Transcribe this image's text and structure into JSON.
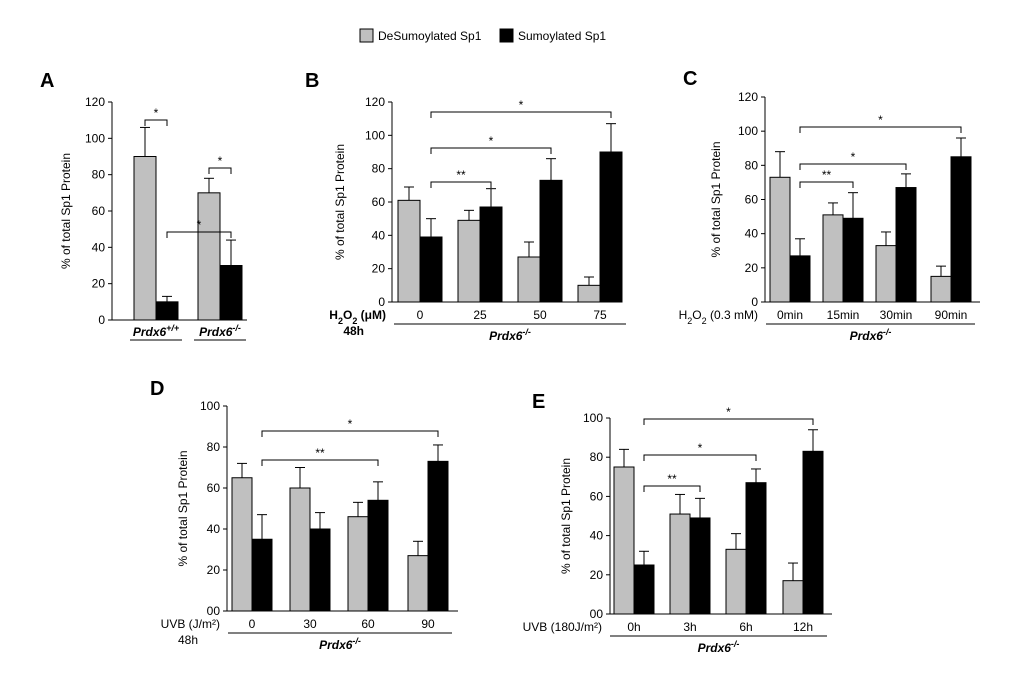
{
  "colors": {
    "desumoylated": "#c0c0c0",
    "sumoylated": "#000000",
    "axis": "#000000"
  },
  "legend": [
    {
      "name": "DeSumoylated Sp1",
      "color": "#c0c0c0"
    },
    {
      "name": "Sumoylated Sp1",
      "color": "#000000"
    }
  ],
  "chart_data": [
    {
      "id": "A",
      "type": "bar",
      "panel_label": "A",
      "ylabel": "% of total Sp1 Protein",
      "ylim": [
        0,
        120
      ],
      "yticks": [
        "0",
        "20",
        "40",
        "60",
        "80",
        "100",
        "120"
      ],
      "groups": [
        {
          "label_main": "Prdx6",
          "label_sup": "+/+",
          "values": [
            90,
            10
          ],
          "errors": [
            16,
            3
          ]
        },
        {
          "label_main": "Prdx6",
          "label_sup": "-/-",
          "values": [
            70,
            30
          ],
          "errors": [
            8,
            14
          ]
        }
      ],
      "annotations": [
        {
          "text": "*"
        },
        {
          "text": "*"
        },
        {
          "text": "*"
        }
      ]
    },
    {
      "id": "B",
      "type": "bar",
      "panel_label": "B",
      "ylabel": "% of total Sp1 Protein",
      "ylim": [
        0,
        120
      ],
      "yticks": [
        "0",
        "20",
        "40",
        "60",
        "80",
        "100",
        "120"
      ],
      "xprefix_main": "H",
      "xprefix_sub": "2",
      "xprefix_mid": "O",
      "xprefix_sub2": "2",
      "xprefix_unit": " (μM)",
      "xprefix_line2": "48h",
      "groups": [
        {
          "label": "0",
          "values": [
            61,
            39
          ],
          "errors": [
            8,
            11
          ]
        },
        {
          "label": "25",
          "values": [
            49,
            57
          ],
          "errors": [
            6,
            11
          ]
        },
        {
          "label": "50",
          "values": [
            27,
            73
          ],
          "errors": [
            9,
            13
          ]
        },
        {
          "label": "75",
          "values": [
            10,
            90
          ],
          "errors": [
            5,
            17
          ]
        }
      ],
      "group_label": "Prdx6-/-",
      "annotations": [
        {
          "text": "**"
        },
        {
          "text": "*"
        },
        {
          "text": "*"
        }
      ]
    },
    {
      "id": "C",
      "type": "bar",
      "panel_label": "C",
      "ylabel": "% of total Sp1 Protein",
      "ylim": [
        0,
        120
      ],
      "yticks": [
        "0",
        "20",
        "40",
        "60",
        "80",
        "100",
        "120"
      ],
      "xprefix_main": "H",
      "xprefix_sub": "2",
      "xprefix_mid": "O",
      "xprefix_sub2": "2",
      "xprefix_unit": " (0.3 mM)",
      "groups": [
        {
          "label": "0min",
          "values": [
            73,
            27
          ],
          "errors": [
            15,
            10
          ]
        },
        {
          "label": "15min",
          "values": [
            51,
            49
          ],
          "errors": [
            7,
            15
          ]
        },
        {
          "label": "30min",
          "values": [
            33,
            67
          ],
          "errors": [
            8,
            8
          ]
        },
        {
          "label": "90min",
          "values": [
            15,
            85
          ],
          "errors": [
            6,
            11
          ]
        }
      ],
      "group_label": "Prdx6-/-",
      "annotations": [
        {
          "text": "**"
        },
        {
          "text": "*"
        },
        {
          "text": "*"
        }
      ]
    },
    {
      "id": "D",
      "type": "bar",
      "panel_label": "D",
      "ylabel": "% of total Sp1 Protein",
      "ylim": [
        0,
        100
      ],
      "yticks": [
        "00",
        "20",
        "40",
        "60",
        "80",
        "100"
      ],
      "xprefix_text": "UVB (J/m²)",
      "xprefix_line2": "48h",
      "groups": [
        {
          "label": "0",
          "values": [
            65,
            35
          ],
          "errors": [
            7,
            12
          ]
        },
        {
          "label": "30",
          "values": [
            60,
            40
          ],
          "errors": [
            10,
            8
          ]
        },
        {
          "label": "60",
          "values": [
            46,
            54
          ],
          "errors": [
            7,
            9
          ]
        },
        {
          "label": "90",
          "values": [
            27,
            73
          ],
          "errors": [
            7,
            8
          ]
        }
      ],
      "group_label": "Prdx6-/-",
      "annotations": [
        {
          "text": "**"
        },
        {
          "text": "*"
        }
      ]
    },
    {
      "id": "E",
      "type": "bar",
      "panel_label": "E",
      "ylabel": "% of total Sp1 Protein",
      "ylim": [
        0,
        100
      ],
      "yticks": [
        "00",
        "20",
        "40",
        "60",
        "80",
        "100"
      ],
      "xprefix_text": "UVB (180J/m²)",
      "groups": [
        {
          "label": "0h",
          "values": [
            75,
            25
          ],
          "errors": [
            9,
            7
          ]
        },
        {
          "label": "3h",
          "values": [
            51,
            49
          ],
          "errors": [
            10,
            10
          ]
        },
        {
          "label": "6h",
          "values": [
            33,
            67
          ],
          "errors": [
            8,
            7
          ]
        },
        {
          "label": "12h",
          "values": [
            17,
            83
          ],
          "errors": [
            9,
            11
          ]
        }
      ],
      "group_label": "Prdx6-/-",
      "annotations": [
        {
          "text": "**"
        },
        {
          "text": "*"
        },
        {
          "text": "*"
        }
      ]
    }
  ]
}
